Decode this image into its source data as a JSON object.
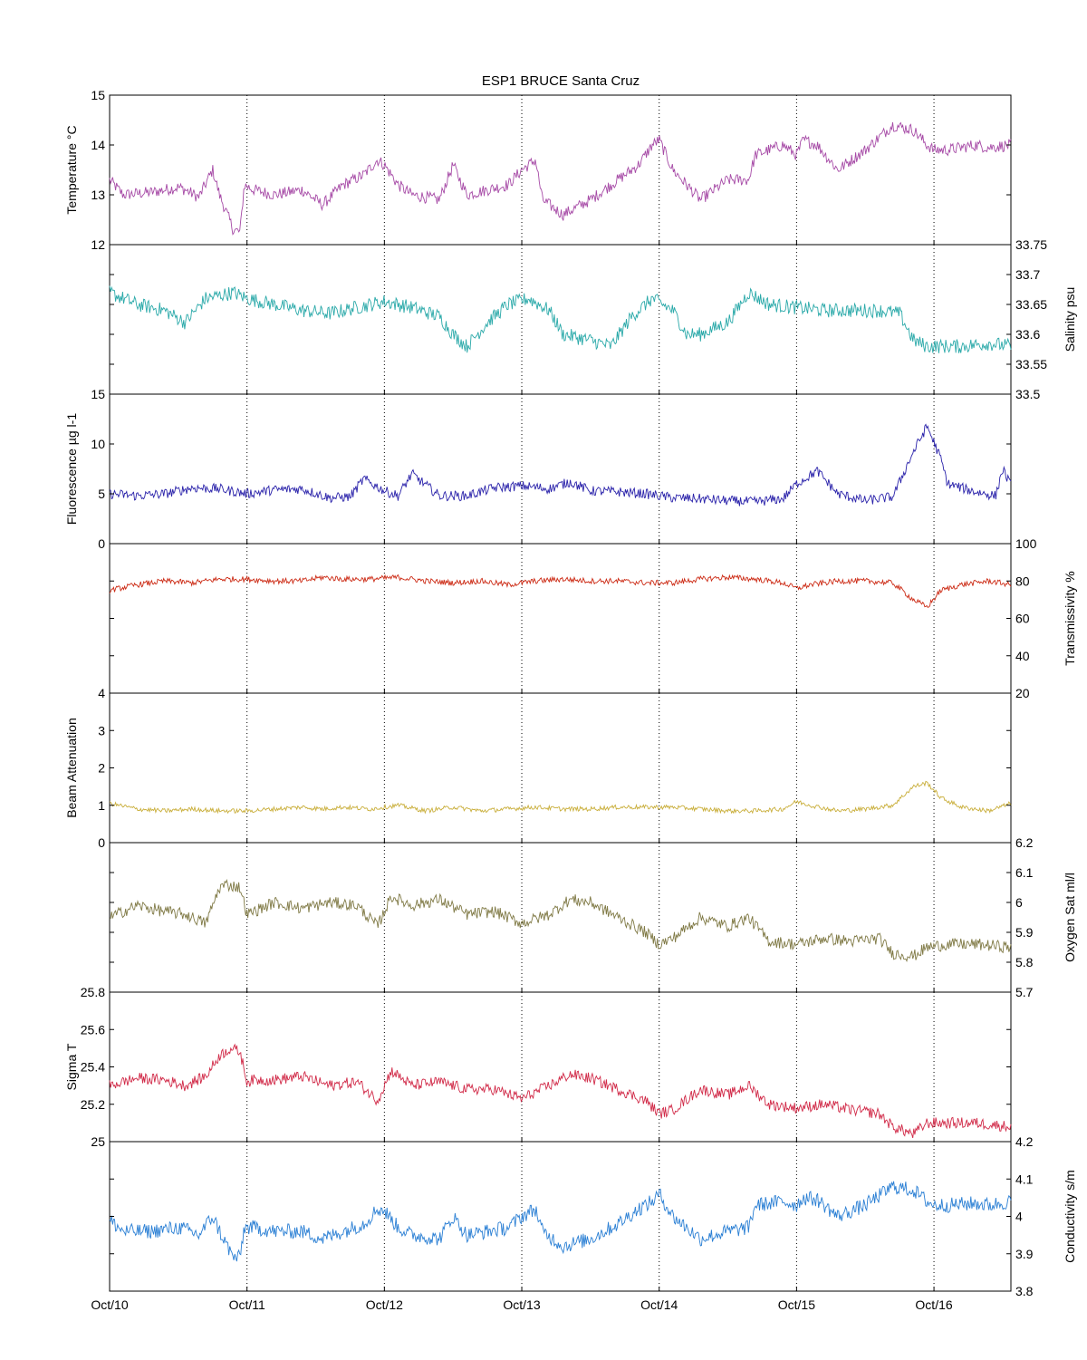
{
  "chart_data": {
    "type": "line",
    "title": "ESP1 BRUCE Santa Cruz",
    "x_axis": {
      "ticks": [
        "Oct/10",
        "Oct/11",
        "Oct/12",
        "Oct/13",
        "Oct/14",
        "Oct/15",
        "Oct/16"
      ],
      "range_days": [
        0,
        6.56
      ],
      "grid": "vertical dotted at each day"
    },
    "panels": [
      {
        "ylabel": "Temperature °C",
        "axis_side": "left",
        "ylim": [
          12,
          15
        ],
        "ytick_labels": [
          "15",
          "14",
          "13",
          "12"
        ],
        "ytick_values": [
          15,
          14,
          13,
          12
        ],
        "color": "#a64aa6",
        "x": [
          0,
          0.1,
          0.3,
          0.5,
          0.55,
          0.65,
          0.75,
          0.8,
          0.9,
          0.95,
          0.98,
          1.05,
          1.2,
          1.4,
          1.55,
          1.7,
          1.85,
          1.95,
          2.0,
          2.1,
          2.2,
          2.4,
          2.5,
          2.6,
          2.75,
          2.9,
          3.0,
          3.1,
          3.15,
          3.3,
          3.5,
          3.7,
          3.85,
          3.95,
          4.0,
          4.1,
          4.2,
          4.3,
          4.5,
          4.65,
          4.7,
          4.8,
          4.9,
          5.0,
          5.05,
          5.15,
          5.3,
          5.5,
          5.7,
          5.85,
          5.95,
          6.0,
          6.1,
          6.3,
          6.4,
          6.56
        ],
        "y": [
          13.3,
          13.0,
          13.05,
          13.15,
          13.1,
          12.95,
          13.5,
          13.0,
          12.3,
          12.25,
          13.2,
          13.1,
          13.0,
          13.1,
          12.8,
          13.2,
          13.4,
          13.7,
          13.6,
          13.2,
          13.0,
          12.9,
          13.6,
          13.0,
          13.1,
          13.2,
          13.5,
          13.7,
          12.9,
          12.6,
          12.9,
          13.3,
          13.6,
          14.0,
          14.1,
          13.5,
          13.2,
          12.9,
          13.3,
          13.3,
          13.8,
          13.9,
          14.0,
          13.8,
          14.1,
          14.0,
          13.5,
          13.9,
          14.4,
          14.3,
          14.0,
          13.9,
          13.9,
          14.0,
          13.95,
          14.0
        ]
      },
      {
        "ylabel": "Salinity psu",
        "axis_side": "right",
        "ylim": [
          33.5,
          33.75
        ],
        "ytick_labels": [
          "33.75",
          "33.7",
          "33.65",
          "33.6",
          "33.55",
          "33.5"
        ],
        "ytick_values": [
          33.75,
          33.7,
          33.65,
          33.6,
          33.55,
          33.5
        ],
        "color": "#2aa9a9",
        "x": [
          0,
          0.2,
          0.4,
          0.55,
          0.7,
          0.9,
          1.0,
          1.2,
          1.4,
          1.6,
          1.8,
          2.0,
          2.2,
          2.4,
          2.5,
          2.6,
          2.75,
          2.9,
          3.05,
          3.2,
          3.3,
          3.5,
          3.65,
          3.8,
          3.95,
          4.1,
          4.2,
          4.3,
          4.5,
          4.65,
          4.8,
          5.0,
          5.2,
          5.4,
          5.6,
          5.75,
          5.85,
          5.95,
          6.2,
          6.4,
          6.56
        ],
        "y": [
          33.67,
          33.65,
          33.64,
          33.62,
          33.66,
          33.67,
          33.66,
          33.65,
          33.64,
          33.635,
          33.645,
          33.655,
          33.645,
          33.63,
          33.6,
          33.58,
          33.62,
          33.65,
          33.66,
          33.64,
          33.6,
          33.59,
          33.58,
          33.63,
          33.66,
          33.64,
          33.6,
          33.6,
          33.62,
          33.67,
          33.65,
          33.645,
          33.64,
          33.64,
          33.64,
          33.635,
          33.59,
          33.58,
          33.58,
          33.585,
          33.58
        ]
      },
      {
        "ylabel": "Fluorescence µg l-1",
        "axis_side": "left",
        "ylim": [
          0,
          15
        ],
        "ytick_labels": [
          "15",
          "10",
          "5",
          "0"
        ],
        "ytick_values": [
          15,
          10,
          5,
          0
        ],
        "color": "#2a22aa",
        "x": [
          0,
          0.2,
          0.4,
          0.6,
          0.8,
          1.0,
          1.2,
          1.4,
          1.6,
          1.75,
          1.85,
          2.0,
          2.1,
          2.2,
          2.4,
          2.6,
          2.8,
          3.0,
          3.2,
          3.35,
          3.5,
          3.7,
          3.9,
          4.1,
          4.3,
          4.5,
          4.7,
          4.9,
          5.0,
          5.15,
          5.3,
          5.5,
          5.7,
          5.85,
          5.95,
          6.05,
          6.1,
          6.3,
          6.45,
          6.5,
          6.56
        ],
        "y": [
          5.0,
          4.8,
          5.0,
          5.6,
          5.5,
          5.0,
          5.4,
          5.5,
          4.6,
          4.7,
          6.5,
          5.3,
          4.8,
          7.0,
          4.8,
          4.8,
          5.6,
          5.8,
          5.5,
          6.2,
          5.3,
          5.2,
          5.0,
          4.6,
          4.5,
          4.3,
          4.2,
          4.5,
          6.0,
          7.3,
          5.0,
          4.3,
          4.7,
          9.2,
          11.8,
          8.5,
          6.0,
          5.2,
          4.8,
          7.5,
          5.8
        ]
      },
      {
        "ylabel": "Transmissivity %",
        "axis_side": "right",
        "ylim": [
          20,
          100
        ],
        "ytick_labels": [
          "100",
          "80",
          "60",
          "40",
          "20"
        ],
        "ytick_values": [
          100,
          80,
          60,
          40,
          20
        ],
        "color": "#cc2a14",
        "x": [
          0,
          0.2,
          0.4,
          0.6,
          0.8,
          1.0,
          1.2,
          1.4,
          1.55,
          1.7,
          1.9,
          2.1,
          2.3,
          2.5,
          2.7,
          2.9,
          3.1,
          3.3,
          3.5,
          3.7,
          3.9,
          4.1,
          4.3,
          4.5,
          4.7,
          4.9,
          5.0,
          5.1,
          5.3,
          5.5,
          5.7,
          5.85,
          5.95,
          6.05,
          6.2,
          6.4,
          6.56
        ],
        "y": [
          75,
          78,
          80,
          79,
          81,
          81,
          80,
          80,
          82,
          81,
          81,
          82,
          80,
          79,
          80,
          78,
          80,
          81,
          80,
          80,
          79,
          79,
          81,
          82,
          81,
          79,
          76,
          78,
          80,
          80,
          79,
          70,
          66,
          75,
          78,
          80,
          78
        ]
      },
      {
        "ylabel": "Beam Attenuation",
        "axis_side": "left",
        "ylim": [
          0,
          4
        ],
        "ytick_labels": [
          "4",
          "3",
          "2",
          "1",
          "0"
        ],
        "ytick_values": [
          4,
          3,
          2,
          1,
          0
        ],
        "color": "#c9ae3a",
        "x": [
          0,
          0.2,
          0.4,
          0.6,
          0.8,
          1.0,
          1.2,
          1.4,
          1.55,
          1.7,
          1.9,
          2.1,
          2.3,
          2.5,
          2.7,
          2.9,
          3.1,
          3.3,
          3.5,
          3.7,
          3.9,
          4.1,
          4.3,
          4.5,
          4.7,
          4.9,
          5.0,
          5.1,
          5.3,
          5.5,
          5.7,
          5.85,
          5.95,
          6.05,
          6.2,
          6.4,
          6.56
        ],
        "y": [
          1.05,
          0.9,
          0.85,
          0.9,
          0.85,
          0.85,
          0.9,
          0.95,
          0.9,
          0.95,
          0.9,
          1.0,
          0.85,
          0.95,
          0.85,
          0.9,
          0.95,
          0.9,
          0.9,
          0.95,
          0.95,
          0.95,
          0.9,
          0.85,
          0.85,
          0.9,
          1.1,
          1.0,
          0.85,
          0.9,
          1.0,
          1.5,
          1.6,
          1.2,
          0.95,
          0.85,
          1.05
        ]
      },
      {
        "ylabel": "Oxygen Sat ml/l",
        "axis_side": "right",
        "ylim": [
          5.7,
          6.2
        ],
        "ytick_labels": [
          "6.2",
          "6.1",
          "6",
          "5.9",
          "5.8",
          "5.7"
        ],
        "ytick_values": [
          6.2,
          6.1,
          6.0,
          5.9,
          5.8,
          5.7
        ],
        "color": "#807a46",
        "x": [
          0,
          0.2,
          0.4,
          0.55,
          0.7,
          0.8,
          0.85,
          0.95,
          1.0,
          1.05,
          1.2,
          1.4,
          1.6,
          1.8,
          1.95,
          2.05,
          2.2,
          2.4,
          2.6,
          2.8,
          3.0,
          3.2,
          3.35,
          3.5,
          3.7,
          3.9,
          4.0,
          4.1,
          4.3,
          4.5,
          4.65,
          4.8,
          5.0,
          5.2,
          5.4,
          5.6,
          5.7,
          5.85,
          5.95,
          6.1,
          6.3,
          6.56
        ],
        "y": [
          5.95,
          5.99,
          5.97,
          5.96,
          5.93,
          6.05,
          6.06,
          6.05,
          5.96,
          5.97,
          6.0,
          5.98,
          6.0,
          5.99,
          5.92,
          6.02,
          5.99,
          6.01,
          5.96,
          5.97,
          5.93,
          5.96,
          6.01,
          6.0,
          5.95,
          5.9,
          5.86,
          5.88,
          5.95,
          5.92,
          5.95,
          5.87,
          5.86,
          5.88,
          5.87,
          5.88,
          5.83,
          5.82,
          5.85,
          5.86,
          5.86,
          5.85
        ]
      },
      {
        "ylabel": "Sigma T",
        "axis_side": "left",
        "ylim": [
          25,
          25.8
        ],
        "ytick_labels": [
          "25.8",
          "25.6",
          "25.4",
          "25.2",
          "25"
        ],
        "ytick_values": [
          25.8,
          25.6,
          25.4,
          25.2,
          25.0
        ],
        "color": "#d12a48",
        "x": [
          0,
          0.2,
          0.4,
          0.55,
          0.7,
          0.8,
          0.88,
          0.95,
          1.0,
          1.05,
          1.2,
          1.4,
          1.6,
          1.8,
          1.95,
          2.05,
          2.2,
          2.4,
          2.6,
          2.8,
          3.0,
          3.2,
          3.35,
          3.5,
          3.7,
          3.9,
          4.0,
          4.1,
          4.3,
          4.5,
          4.65,
          4.8,
          5.0,
          5.2,
          5.4,
          5.6,
          5.7,
          5.85,
          5.95,
          6.1,
          6.3,
          6.56
        ],
        "y": [
          25.3,
          25.34,
          25.33,
          25.3,
          25.35,
          25.46,
          25.5,
          25.48,
          25.32,
          25.33,
          25.33,
          25.35,
          25.3,
          25.32,
          25.22,
          25.38,
          25.3,
          25.32,
          25.28,
          25.28,
          25.23,
          25.3,
          25.36,
          25.34,
          25.28,
          25.22,
          25.15,
          25.17,
          25.28,
          25.25,
          25.3,
          25.2,
          25.18,
          25.2,
          25.17,
          25.15,
          25.08,
          25.04,
          25.1,
          25.1,
          25.1,
          25.08
        ]
      },
      {
        "ylabel": "Conductivity s/m",
        "axis_side": "right",
        "ylim": [
          3.8,
          4.2
        ],
        "ytick_labels": [
          "4.2",
          "4.1",
          "4",
          "3.9",
          "3.8"
        ],
        "ytick_values": [
          4.2,
          4.1,
          4.0,
          3.9,
          3.8
        ],
        "color": "#2a7fd4",
        "x": [
          0,
          0.1,
          0.3,
          0.5,
          0.55,
          0.65,
          0.75,
          0.8,
          0.9,
          0.95,
          0.98,
          1.05,
          1.2,
          1.4,
          1.55,
          1.7,
          1.85,
          1.95,
          2.0,
          2.1,
          2.2,
          2.4,
          2.5,
          2.6,
          2.75,
          2.9,
          3.0,
          3.1,
          3.15,
          3.3,
          3.5,
          3.7,
          3.85,
          3.95,
          4.0,
          4.1,
          4.2,
          4.3,
          4.5,
          4.65,
          4.7,
          4.8,
          4.9,
          5.0,
          5.05,
          5.15,
          5.3,
          5.5,
          5.7,
          5.85,
          5.95,
          6.0,
          6.1,
          6.3,
          6.4,
          6.56
        ],
        "y": [
          3.99,
          3.96,
          3.96,
          3.97,
          3.965,
          3.95,
          4.0,
          3.96,
          3.89,
          3.89,
          3.97,
          3.97,
          3.96,
          3.96,
          3.94,
          3.96,
          3.98,
          4.02,
          4.015,
          3.97,
          3.95,
          3.94,
          4.0,
          3.95,
          3.96,
          3.97,
          4.0,
          4.02,
          3.96,
          3.92,
          3.94,
          3.98,
          4.02,
          4.04,
          4.06,
          4.0,
          3.97,
          3.94,
          3.96,
          3.97,
          4.03,
          4.035,
          4.04,
          4.03,
          4.05,
          4.045,
          4.0,
          4.03,
          4.08,
          4.07,
          4.04,
          4.03,
          4.03,
          4.035,
          4.03,
          4.04
        ]
      }
    ]
  }
}
